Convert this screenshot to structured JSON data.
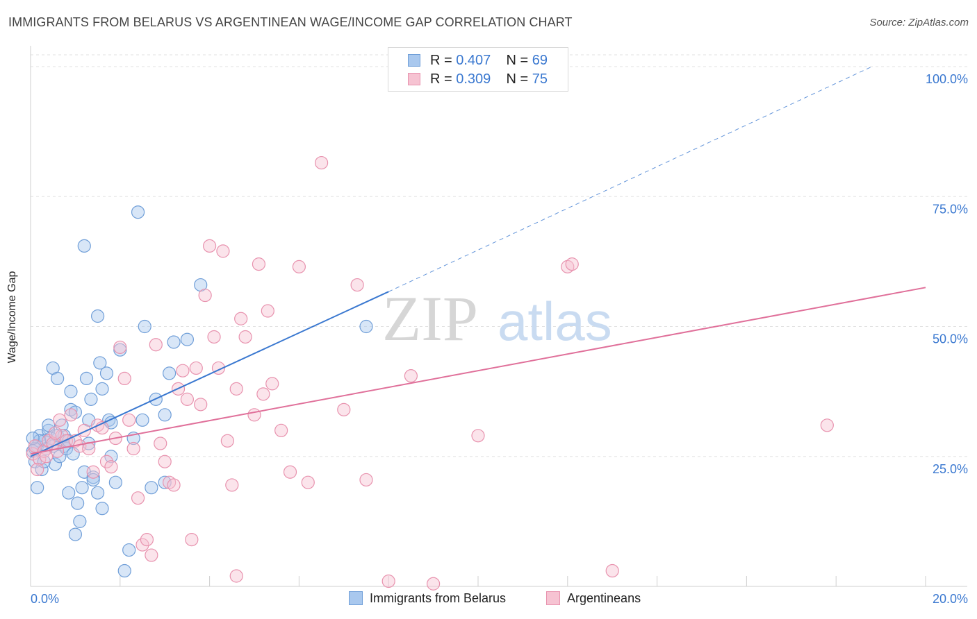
{
  "title": "IMMIGRANTS FROM BELARUS VS ARGENTINEAN WAGE/INCOME GAP CORRELATION CHART",
  "source": "Source: ZipAtlas.com",
  "watermark": {
    "zip": "ZIP",
    "atlas": "atlas"
  },
  "legend_top": [
    {
      "r_label": "R = ",
      "r_value": "0.407",
      "n_label": "N = ",
      "n_value": "69"
    },
    {
      "r_label": "R = ",
      "r_value": "0.309",
      "n_label": "N = ",
      "n_value": "75"
    }
  ],
  "legend_bottom": [
    {
      "label": "Immigrants from Belarus"
    },
    {
      "label": "Argentineans"
    }
  ],
  "colors": {
    "blue_fill": "#a9c8ee",
    "blue_stroke": "#6f9ed8",
    "blue_line": "#3a78d0",
    "pink_fill": "#f6c3d2",
    "pink_stroke": "#e892ae",
    "pink_line": "#e0709a",
    "axis_label": "#3a78d0",
    "grid": "#e2e2e2"
  },
  "chart_data": {
    "type": "scatter",
    "title": "IMMIGRANTS FROM BELARUS VS ARGENTINEAN WAGE/INCOME GAP CORRELATION CHART",
    "xlabel": "",
    "ylabel": "Wage/Income Gap",
    "xlim": [
      0,
      20
    ],
    "ylim": [
      0,
      100
    ],
    "x_tick_labels": [
      {
        "value": 0,
        "label": "0.0%"
      },
      {
        "value": 20,
        "label": "20.0%"
      }
    ],
    "y_tick_labels": [
      {
        "value": 25,
        "label": "25.0%"
      },
      {
        "value": 50,
        "label": "50.0%"
      },
      {
        "value": 75,
        "label": "75.0%"
      },
      {
        "value": 100,
        "label": "100.0%"
      }
    ],
    "series": [
      {
        "name": "Immigrants from Belarus",
        "color": "blue",
        "r": 0.407,
        "n": 69,
        "trend": {
          "x0": 0.0,
          "y0": 25.0,
          "x1": 8.0,
          "y1": 56.7,
          "dash_x1": 18.8,
          "dash_y1": 100
        },
        "points": [
          [
            0.05,
            26.0
          ],
          [
            0.1,
            24.0
          ],
          [
            0.15,
            27.0
          ],
          [
            0.2,
            29.0
          ],
          [
            0.25,
            22.5
          ],
          [
            0.3,
            28.0
          ],
          [
            0.35,
            26.5
          ],
          [
            0.4,
            30.0
          ],
          [
            0.45,
            28.5
          ],
          [
            0.5,
            27.0
          ],
          [
            0.55,
            23.5
          ],
          [
            0.6,
            29.0
          ],
          [
            0.65,
            25.0
          ],
          [
            0.7,
            31.0
          ],
          [
            0.75,
            27.0
          ],
          [
            0.8,
            26.5
          ],
          [
            0.85,
            18.0
          ],
          [
            0.9,
            34.0
          ],
          [
            0.95,
            25.5
          ],
          [
            1.0,
            10.0
          ],
          [
            1.05,
            16.0
          ],
          [
            1.1,
            12.5
          ],
          [
            1.15,
            19.0
          ],
          [
            1.2,
            22.0
          ],
          [
            1.25,
            40.0
          ],
          [
            1.3,
            27.5
          ],
          [
            1.35,
            36.0
          ],
          [
            1.4,
            21.0
          ],
          [
            1.5,
            18.0
          ],
          [
            1.55,
            43.0
          ],
          [
            1.6,
            38.0
          ],
          [
            1.7,
            41.0
          ],
          [
            1.75,
            32.0
          ],
          [
            1.8,
            25.0
          ],
          [
            1.9,
            20.0
          ],
          [
            2.0,
            45.5
          ],
          [
            2.1,
            3.0
          ],
          [
            2.2,
            7.0
          ],
          [
            2.3,
            28.5
          ],
          [
            2.4,
            72.0
          ],
          [
            2.55,
            50.0
          ],
          [
            2.7,
            19.0
          ],
          [
            2.8,
            36.0
          ],
          [
            3.0,
            33.0
          ],
          [
            3.1,
            41.0
          ],
          [
            3.2,
            47.0
          ],
          [
            3.5,
            47.5
          ],
          [
            3.8,
            58.0
          ],
          [
            0.5,
            42.0
          ],
          [
            0.9,
            37.5
          ],
          [
            1.0,
            33.5
          ],
          [
            1.2,
            65.5
          ],
          [
            1.5,
            52.0
          ],
          [
            1.8,
            31.5
          ],
          [
            0.6,
            40.0
          ],
          [
            0.3,
            24.0
          ],
          [
            0.4,
            31.0
          ],
          [
            0.75,
            29.0
          ],
          [
            0.15,
            19.0
          ],
          [
            0.2,
            28.0
          ],
          [
            1.4,
            20.5
          ],
          [
            0.85,
            28.0
          ],
          [
            0.1,
            26.5
          ],
          [
            1.6,
            15.0
          ],
          [
            2.5,
            32.0
          ],
          [
            3.0,
            20.0
          ],
          [
            7.5,
            50.0
          ],
          [
            0.05,
            28.5
          ],
          [
            1.3,
            32.0
          ]
        ]
      },
      {
        "name": "Argentineans",
        "color": "pink",
        "r": 0.309,
        "n": 75,
        "trend": {
          "x0": 0.0,
          "y0": 25.5,
          "x1": 20.0,
          "y1": 57.5
        },
        "points": [
          [
            0.05,
            25.5
          ],
          [
            0.1,
            27.0
          ],
          [
            0.2,
            24.5
          ],
          [
            0.3,
            26.0
          ],
          [
            0.4,
            28.0
          ],
          [
            0.5,
            27.5
          ],
          [
            0.6,
            26.0
          ],
          [
            0.7,
            29.0
          ],
          [
            0.8,
            28.0
          ],
          [
            0.9,
            33.0
          ],
          [
            1.0,
            28.0
          ],
          [
            1.1,
            27.0
          ],
          [
            1.2,
            30.0
          ],
          [
            1.3,
            26.5
          ],
          [
            1.4,
            22.0
          ],
          [
            1.5,
            31.0
          ],
          [
            1.6,
            30.5
          ],
          [
            1.7,
            24.0
          ],
          [
            1.8,
            23.0
          ],
          [
            1.9,
            28.5
          ],
          [
            2.0,
            46.0
          ],
          [
            2.1,
            40.0
          ],
          [
            2.2,
            32.0
          ],
          [
            2.3,
            26.5
          ],
          [
            2.4,
            17.0
          ],
          [
            2.5,
            8.0
          ],
          [
            2.6,
            9.0
          ],
          [
            2.7,
            6.0
          ],
          [
            2.8,
            46.5
          ],
          [
            2.9,
            27.5
          ],
          [
            3.0,
            24.0
          ],
          [
            3.1,
            20.0
          ],
          [
            3.2,
            19.5
          ],
          [
            3.3,
            38.0
          ],
          [
            3.4,
            41.5
          ],
          [
            3.5,
            36.0
          ],
          [
            3.6,
            9.0
          ],
          [
            3.7,
            42.0
          ],
          [
            3.8,
            35.0
          ],
          [
            3.9,
            56.0
          ],
          [
            4.0,
            65.5
          ],
          [
            4.1,
            48.0
          ],
          [
            4.2,
            42.0
          ],
          [
            4.3,
            64.5
          ],
          [
            4.4,
            28.0
          ],
          [
            4.5,
            19.5
          ],
          [
            4.6,
            38.0
          ],
          [
            4.7,
            51.5
          ],
          [
            4.8,
            48.0
          ],
          [
            5.0,
            33.0
          ],
          [
            5.1,
            62.0
          ],
          [
            5.2,
            37.0
          ],
          [
            5.3,
            53.0
          ],
          [
            5.4,
            39.0
          ],
          [
            5.6,
            30.0
          ],
          [
            5.8,
            22.0
          ],
          [
            6.0,
            61.5
          ],
          [
            6.2,
            20.0
          ],
          [
            6.5,
            81.5
          ],
          [
            7.0,
            34.0
          ],
          [
            7.3,
            58.0
          ],
          [
            7.5,
            20.5
          ],
          [
            8.0,
            1.0
          ],
          [
            8.5,
            40.5
          ],
          [
            9.0,
            0.5
          ],
          [
            10.0,
            29.0
          ],
          [
            12.0,
            61.5
          ],
          [
            12.1,
            62.0
          ],
          [
            13.0,
            3.0
          ],
          [
            17.8,
            31.0
          ],
          [
            0.15,
            22.5
          ],
          [
            0.35,
            25.0
          ],
          [
            0.55,
            29.5
          ],
          [
            0.65,
            32.0
          ],
          [
            4.6,
            2.0
          ]
        ]
      }
    ]
  }
}
